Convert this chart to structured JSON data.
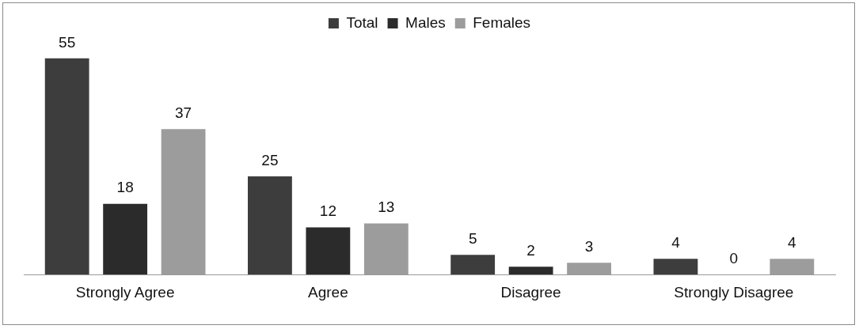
{
  "chart_data": {
    "type": "bar",
    "categories": [
      "Strongly Agree",
      "Agree",
      "Disagree",
      "Strongly Disagree"
    ],
    "series": [
      {
        "name": "Total",
        "color": "#3d3d3d",
        "values": [
          55,
          25,
          5,
          4
        ]
      },
      {
        "name": "Males",
        "color": "#2b2b2b",
        "values": [
          18,
          12,
          2,
          0
        ]
      },
      {
        "name": "Females",
        "color": "#9c9c9c",
        "values": [
          37,
          13,
          3,
          4
        ]
      }
    ],
    "data_labels": true,
    "legend": "top",
    "grid": false,
    "tick_labels": "x"
  }
}
